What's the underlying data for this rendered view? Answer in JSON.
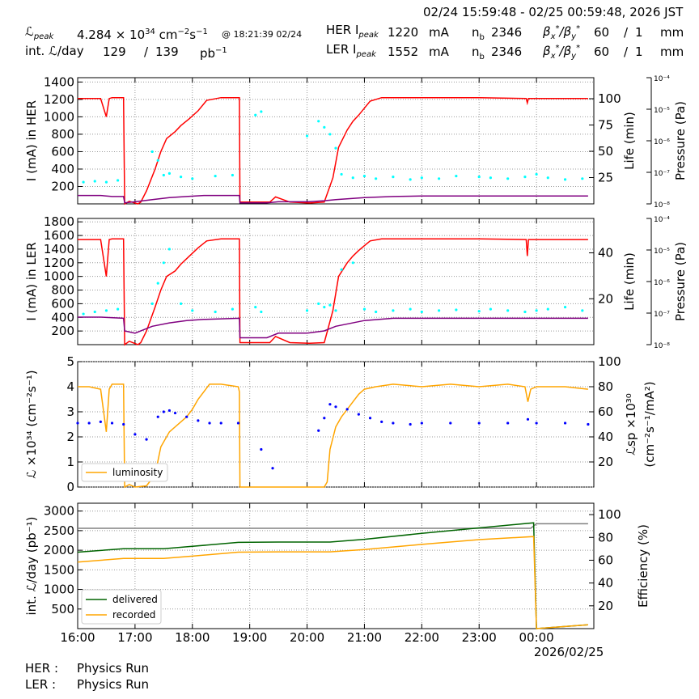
{
  "header": {
    "time_range": "02/24 15:59:48 - 02/25 00:59:48, 2026 JST",
    "lpeak_label": "peak",
    "lpeak_value": "4.284",
    "lpeak_exp": "34",
    "lpeak_unit": "cm",
    "lpeak_unit_exp": "−2",
    "lpeak_unit2": "s",
    "lpeak_unit2_exp": "−1",
    "lpeak_time": "@ 18:21:39 02/24",
    "intl_label": "int.",
    "intl_suffix": "/day",
    "intl_value1": "129",
    "intl_slash": "/",
    "intl_value2": "139",
    "intl_unit": "pb",
    "intl_unit_exp": "−1",
    "her_label": "HER I",
    "her_sub": "peak",
    "her_value": "1220",
    "her_unit": "mA",
    "ler_label": "LER I",
    "ler_sub": "peak",
    "ler_value": "1552",
    "ler_unit": "mA",
    "nb_label": "n",
    "nb_sub": "b",
    "her_nb": "2346",
    "ler_nb": "2346",
    "beta_label": "β",
    "her_beta_x": "60",
    "her_beta_y": "1",
    "ler_beta_x": "60",
    "ler_beta_y": "1",
    "beta_slash": "/",
    "beta_unit": "mm"
  },
  "footer": {
    "her_label": "HER :",
    "her_status": "Physics Run",
    "ler_label": "LER :",
    "ler_status": "Physics Run"
  },
  "colors": {
    "current": "#ff0000",
    "life": "#800080",
    "pressure": "#00ffff",
    "luminosity": "#ffa500",
    "specific": "#0000ff",
    "delivered": "#006400",
    "recorded": "#ffa500",
    "efficiency": "#808080",
    "grid": "#999999"
  },
  "chart_data": [
    {
      "type": "line",
      "ylabel": "I (mA) in HER",
      "y2label": "Life (min)",
      "y3label": "Pressure (Pa)",
      "ylim": [
        0,
        1450
      ],
      "yticks": [
        200,
        400,
        600,
        800,
        1000,
        1200,
        1400
      ],
      "y2lim": [
        0,
        120
      ],
      "y2ticks": [
        25,
        50,
        75,
        100
      ],
      "y3ticks": [
        "10⁻⁸",
        "10⁻⁷",
        "10⁻⁶",
        "10⁻⁵",
        "10⁻⁴"
      ],
      "series": [
        {
          "role": "current",
          "x": [
            16.0,
            16.4,
            16.5,
            16.55,
            16.6,
            16.8,
            16.82,
            16.9,
            17.05,
            17.1,
            17.2,
            17.35,
            17.45,
            17.55,
            17.7,
            17.8,
            17.95,
            18.1,
            18.25,
            18.5,
            18.82,
            18.83,
            19.35,
            19.45,
            19.7,
            20.05,
            20.3,
            20.45,
            20.55,
            20.7,
            20.8,
            20.9,
            21.0,
            21.1,
            21.3,
            22.0,
            23.0,
            23.82,
            23.84,
            23.86,
            23.9,
            24.0,
            24.9
          ],
          "y": [
            1210,
            1210,
            1000,
            1210,
            1220,
            1220,
            0,
            30,
            0,
            20,
            150,
            400,
            600,
            750,
            830,
            900,
            980,
            1070,
            1190,
            1220,
            1220,
            20,
            20,
            80,
            20,
            10,
            20,
            300,
            650,
            850,
            950,
            1020,
            1100,
            1180,
            1220,
            1220,
            1220,
            1210,
            1160,
            1210,
            1210,
            1210,
            1210
          ]
        },
        {
          "role": "life",
          "x": [
            16.0,
            16.4,
            16.6,
            16.8,
            16.82,
            17.0,
            17.3,
            17.6,
            17.9,
            18.2,
            18.82,
            18.83,
            19.3,
            19.5,
            20.0,
            20.3,
            20.5,
            21.0,
            21.5,
            22.0,
            23.0,
            23.9,
            24.9
          ],
          "y": [
            8,
            8,
            7,
            7,
            1,
            2,
            4,
            6,
            7,
            8,
            8,
            1,
            1,
            2,
            2,
            3,
            4,
            6,
            7,
            7.5,
            7.5,
            7.5,
            7.5
          ]
        },
        {
          "role": "pressure",
          "x": [
            16.1,
            16.3,
            16.5,
            16.7,
            17.3,
            17.4,
            17.5,
            17.6,
            17.8,
            18.0,
            18.4,
            18.7,
            19.1,
            19.2,
            20.0,
            20.2,
            20.3,
            20.4,
            20.5,
            20.6,
            20.8,
            21.0,
            21.2,
            21.5,
            21.8,
            22.0,
            22.3,
            22.6,
            23.0,
            23.2,
            23.5,
            23.8,
            24.0,
            24.2,
            24.5,
            24.8
          ],
          "y": [
            250,
            260,
            250,
            270,
            600,
            500,
            330,
            350,
            310,
            290,
            320,
            330,
            1020,
            1060,
            780,
            950,
            880,
            800,
            640,
            340,
            300,
            320,
            290,
            310,
            280,
            300,
            290,
            320,
            310,
            300,
            290,
            310,
            340,
            300,
            280,
            290
          ]
        }
      ]
    },
    {
      "type": "line",
      "ylabel": "I (mA) in LER",
      "y2label": "Life (min)",
      "y3label": "Pressure (Pa)",
      "ylim": [
        0,
        1850
      ],
      "yticks": [
        200,
        400,
        600,
        800,
        1000,
        1200,
        1400,
        1600,
        1800
      ],
      "y2lim": [
        0,
        55
      ],
      "y2ticks": [
        20,
        40
      ],
      "y3ticks": [
        "10⁻⁸",
        "10⁻⁷",
        "10⁻⁶",
        "10⁻⁵",
        "10⁻⁴"
      ],
      "series": [
        {
          "role": "current",
          "x": [
            16.0,
            16.4,
            16.5,
            16.55,
            16.6,
            16.8,
            16.82,
            16.9,
            17.05,
            17.1,
            17.2,
            17.35,
            17.45,
            17.55,
            17.7,
            17.8,
            17.95,
            18.1,
            18.25,
            18.5,
            18.82,
            18.83,
            19.35,
            19.45,
            19.7,
            20.05,
            20.3,
            20.45,
            20.55,
            20.7,
            20.8,
            20.9,
            21.0,
            21.1,
            21.3,
            22.0,
            23.0,
            23.82,
            23.84,
            23.86,
            23.9,
            24.0,
            24.9
          ],
          "y": [
            1540,
            1540,
            1000,
            1540,
            1550,
            1550,
            0,
            50,
            0,
            30,
            200,
            550,
            800,
            1000,
            1080,
            1180,
            1300,
            1420,
            1520,
            1550,
            1550,
            30,
            30,
            120,
            30,
            20,
            30,
            500,
            1000,
            1200,
            1300,
            1380,
            1450,
            1520,
            1550,
            1550,
            1550,
            1540,
            1300,
            1540,
            1540,
            1540,
            1540
          ]
        },
        {
          "role": "life",
          "x": [
            16.0,
            16.4,
            16.8,
            16.82,
            17.0,
            17.3,
            17.6,
            17.9,
            18.2,
            18.82,
            18.83,
            19.3,
            19.5,
            20.0,
            20.3,
            20.5,
            21.0,
            21.5,
            22.0,
            23.0,
            23.9,
            24.9
          ],
          "y": [
            12,
            12,
            11.5,
            6,
            5,
            8,
            9.5,
            10.5,
            11,
            11.5,
            3,
            3,
            5,
            5,
            6,
            8,
            10.5,
            11.5,
            11.5,
            11.5,
            11.5,
            11.5
          ]
        },
        {
          "role": "pressure",
          "x": [
            16.1,
            16.3,
            16.5,
            16.7,
            17.3,
            17.4,
            17.5,
            17.6,
            17.8,
            18.0,
            18.4,
            18.7,
            19.1,
            19.2,
            20.0,
            20.2,
            20.3,
            20.4,
            20.5,
            20.6,
            20.8,
            21.0,
            21.2,
            21.5,
            21.8,
            22.0,
            22.3,
            22.6,
            23.0,
            23.2,
            23.5,
            23.8,
            24.0,
            24.2,
            24.5,
            24.8
          ],
          "y": [
            450,
            480,
            500,
            520,
            600,
            900,
            1200,
            1400,
            600,
            500,
            480,
            520,
            550,
            480,
            500,
            600,
            550,
            580,
            500,
            1100,
            1200,
            520,
            480,
            500,
            520,
            480,
            500,
            510,
            490,
            520,
            500,
            480,
            500,
            520,
            550,
            500
          ]
        }
      ]
    },
    {
      "type": "line",
      "ylabel": "ℒ ×10³⁴ (cm⁻²s⁻¹)",
      "y2label1": "ℒsp ×10³⁰",
      "y2label2": "(cm⁻²s⁻¹/mA²)",
      "ylim": [
        0,
        5
      ],
      "yticks": [
        0,
        1,
        2,
        3,
        4,
        5
      ],
      "y2lim": [
        0,
        100
      ],
      "y2ticks": [
        20,
        40,
        60,
        80,
        100
      ],
      "legend": "luminosity",
      "series": [
        {
          "role": "luminosity",
          "name": "luminosity",
          "x": [
            16.0,
            16.2,
            16.4,
            16.5,
            16.55,
            16.6,
            16.8,
            16.82,
            16.9,
            17.0,
            17.2,
            17.35,
            17.45,
            17.6,
            17.8,
            17.9,
            18.0,
            18.1,
            18.2,
            18.3,
            18.5,
            18.8,
            18.82,
            18.83,
            19.5,
            20.0,
            20.3,
            20.35,
            20.4,
            20.5,
            20.6,
            20.7,
            20.8,
            20.9,
            21.0,
            21.2,
            21.5,
            22.0,
            22.5,
            23.0,
            23.5,
            23.8,
            23.85,
            23.9,
            24.0,
            24.5,
            24.9
          ],
          "y": [
            4.0,
            4.0,
            3.9,
            2.2,
            3.9,
            4.1,
            4.1,
            0,
            0.1,
            0,
            0.05,
            0.5,
            1.6,
            2.2,
            2.6,
            2.8,
            3.1,
            3.5,
            3.8,
            4.1,
            4.1,
            4.0,
            3.8,
            0,
            0,
            0,
            0,
            0.2,
            1.5,
            2.4,
            2.8,
            3.1,
            3.4,
            3.7,
            3.9,
            4.0,
            4.1,
            4.0,
            4.1,
            4.0,
            4.1,
            4.0,
            3.4,
            3.9,
            4.0,
            4.0,
            3.9
          ]
        },
        {
          "role": "specific",
          "x": [
            16.0,
            16.2,
            16.4,
            16.6,
            16.8,
            17.0,
            17.2,
            17.4,
            17.5,
            17.6,
            17.7,
            17.9,
            18.1,
            18.3,
            18.5,
            18.8,
            19.2,
            19.4,
            20.2,
            20.3,
            20.4,
            20.5,
            20.7,
            20.9,
            21.1,
            21.3,
            21.5,
            21.8,
            22.0,
            22.5,
            23.0,
            23.5,
            23.85,
            24.0,
            24.5,
            24.9
          ],
          "y": [
            51,
            51,
            52,
            51,
            50,
            42,
            38,
            56,
            60,
            61,
            59,
            56,
            53,
            51,
            51,
            51,
            30,
            15,
            45,
            55,
            66,
            64,
            62,
            58,
            55,
            52,
            51,
            50,
            51,
            51,
            51,
            51,
            54,
            51,
            51,
            50
          ]
        }
      ]
    },
    {
      "type": "line",
      "ylabel": "int. ℒ/day (pb⁻¹)",
      "y2label": "Efficiency (%)",
      "ylim": [
        0,
        3200
      ],
      "yticks": [
        500,
        1000,
        1500,
        2000,
        2500,
        3000
      ],
      "y2lim": [
        0,
        110
      ],
      "y2ticks": [
        20,
        40,
        60,
        80,
        100
      ],
      "x_ticks": [
        "16:00",
        "17:00",
        "18:00",
        "19:00",
        "20:00",
        "21:00",
        "22:00",
        "23:00",
        "00:00"
      ],
      "date_label": "2026/02/25",
      "legend": [
        "delivered",
        "recorded"
      ],
      "series": [
        {
          "role": "efficiency",
          "x": [
            16.0,
            18.0,
            20.0,
            22.0,
            23.9,
            24.0,
            24.9
          ],
          "y": [
            88,
            88,
            88,
            88,
            88,
            92,
            92
          ]
        },
        {
          "role": "delivered",
          "name": "delivered",
          "x": [
            16.0,
            16.8,
            17.5,
            18.0,
            18.8,
            19.5,
            20.4,
            21.0,
            22.0,
            23.0,
            23.95,
            24.0,
            24.9
          ],
          "y": [
            1950,
            2040,
            2040,
            2100,
            2200,
            2210,
            2210,
            2280,
            2430,
            2570,
            2700,
            0,
            100
          ]
        },
        {
          "role": "recorded",
          "name": "recorded",
          "x": [
            16.0,
            16.8,
            17.5,
            18.0,
            18.8,
            19.5,
            20.4,
            21.0,
            22.0,
            23.0,
            23.95,
            24.0,
            24.9
          ],
          "y": [
            1700,
            1790,
            1790,
            1850,
            1950,
            1960,
            1960,
            2020,
            2150,
            2270,
            2350,
            0,
            100
          ]
        }
      ]
    }
  ]
}
